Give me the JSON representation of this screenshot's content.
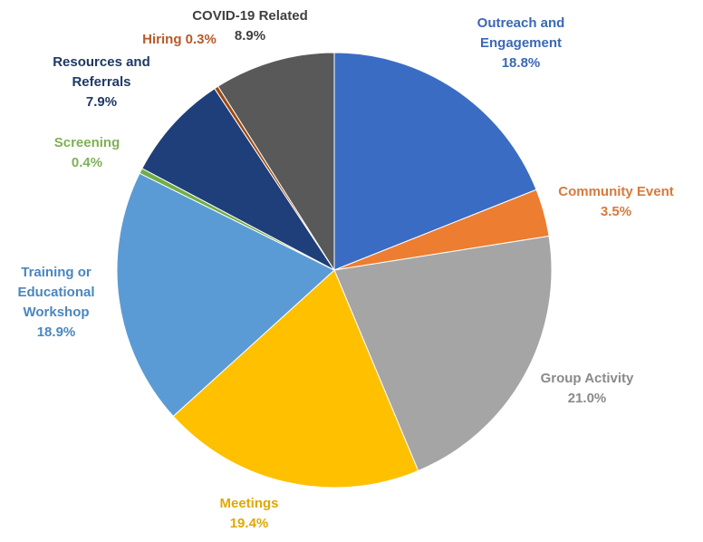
{
  "chart_data": {
    "type": "pie",
    "title": "",
    "slices": [
      {
        "label": "Outreach and Engagement",
        "value": 18.8,
        "value_label": "18.8%",
        "color": "#3b6cc4",
        "label_color": "#3a68b4",
        "label_lines": [
          "Outreach and",
          "Engagement"
        ]
      },
      {
        "label": "Community Event",
        "value": 3.5,
        "value_label": "3.5%",
        "color": "#ed7d31",
        "label_color": "#d77a3a",
        "label_lines": [
          "Community Event"
        ]
      },
      {
        "label": "Group Activity",
        "value": 21.0,
        "value_label": "21.0%",
        "color": "#a5a5a5",
        "label_color": "#8a8a8a",
        "label_lines": [
          "Group Activity"
        ]
      },
      {
        "label": "Meetings",
        "value": 19.4,
        "value_label": "19.4%",
        "color": "#ffc000",
        "label_color": "#e0a800",
        "label_lines": [
          "Meetings"
        ]
      },
      {
        "label": "Training or Educational Workshop",
        "value": 18.9,
        "value_label": "18.9%",
        "color": "#5b9bd5",
        "label_color": "#4a86c0",
        "label_lines": [
          "Training or",
          "Educational",
          "Workshop"
        ]
      },
      {
        "label": "Screening",
        "value": 0.4,
        "value_label": "0.4%",
        "color": "#70ad47",
        "label_color": "#7fb055",
        "label_lines": [
          "Screening"
        ]
      },
      {
        "label": "Resources and Referrals",
        "value": 7.9,
        "value_label": "7.9%",
        "color": "#1f3f7a",
        "label_color": "#1f3864",
        "label_lines": [
          "Resources and",
          "Referrals"
        ]
      },
      {
        "label": "Hiring",
        "value": 0.3,
        "value_label": "0.3%",
        "color": "#9e480e",
        "label_color": "#b65a2a",
        "label_lines": [
          "Hiring"
        ]
      },
      {
        "label": "COVID-19 Related",
        "value": 8.9,
        "value_label": "8.9%",
        "color": "#595959",
        "label_color": "#404040",
        "label_lines": [
          "COVID-19 Related"
        ]
      }
    ]
  }
}
